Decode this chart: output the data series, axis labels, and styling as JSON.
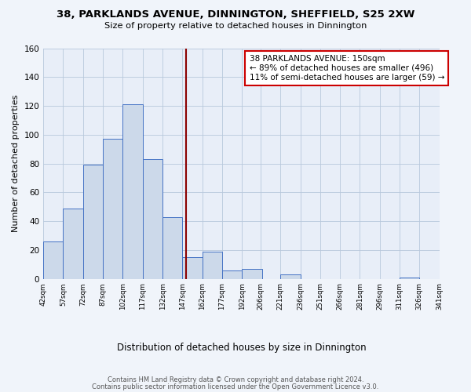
{
  "title": "38, PARKLANDS AVENUE, DINNINGTON, SHEFFIELD, S25 2XW",
  "subtitle": "Size of property relative to detached houses in Dinnington",
  "xlabel": "Distribution of detached houses by size in Dinnington",
  "ylabel": "Number of detached properties",
  "bin_edges": [
    42,
    57,
    72,
    87,
    102,
    117,
    132,
    147,
    162,
    177,
    192,
    206,
    221,
    236,
    251,
    266,
    281,
    296,
    311,
    326,
    341
  ],
  "bin_labels": [
    "42sqm",
    "57sqm",
    "72sqm",
    "87sqm",
    "102sqm",
    "117sqm",
    "132sqm",
    "147sqm",
    "162sqm",
    "177sqm",
    "192sqm",
    "206sqm",
    "221sqm",
    "236sqm",
    "251sqm",
    "266sqm",
    "281sqm",
    "296sqm",
    "311sqm",
    "326sqm",
    "341sqm"
  ],
  "counts": [
    26,
    49,
    79,
    97,
    121,
    83,
    43,
    15,
    19,
    6,
    7,
    0,
    3,
    0,
    0,
    0,
    0,
    0,
    1,
    0,
    0
  ],
  "bar_color": "#ccd9ea",
  "bar_edge_color": "#4472c4",
  "vline_x": 150,
  "vline_color": "#8b0000",
  "annotation_title": "38 PARKLANDS AVENUE: 150sqm",
  "annotation_line1": "← 89% of detached houses are smaller (496)",
  "annotation_line2": "11% of semi-detached houses are larger (59) →",
  "annotation_box_color": "#ffffff",
  "annotation_box_edge": "#cc0000",
  "background_color": "#f0f4fa",
  "plot_bg_color": "#e8eef8",
  "footer1": "Contains HM Land Registry data © Crown copyright and database right 2024.",
  "footer2": "Contains public sector information licensed under the Open Government Licence v3.0.",
  "ylim": [
    0,
    160
  ],
  "grid_color": "#b8c8dc"
}
